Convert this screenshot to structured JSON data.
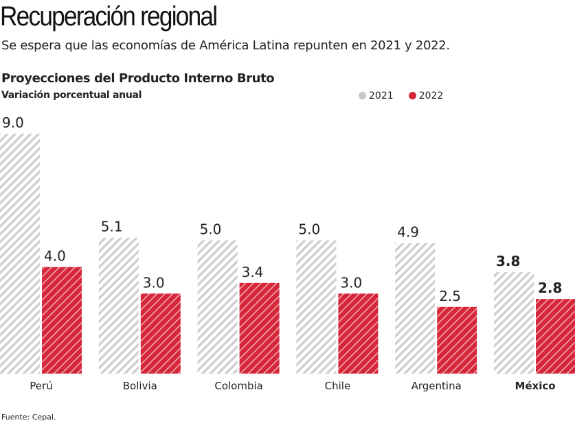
{
  "title": "Recuperación regional",
  "subtitle": "Se espera que las economías de América Latina repunten en 2021 y 2022.",
  "source": "Fuente: Cepal.",
  "colors": {
    "2021": "#c8c8c8",
    "2022": "#d6263a"
  },
  "chart_data": {
    "type": "bar",
    "title": "Proyecciones del Producto Interno Bruto",
    "subtitle": "Variación porcentual anual",
    "categories": [
      "Perú",
      "Bolivia",
      "Colombia",
      "Chile",
      "Argentina",
      "México"
    ],
    "highlight": "México",
    "series": [
      {
        "name": "2021",
        "values": [
          9.0,
          5.1,
          5.0,
          5.0,
          4.9,
          3.8
        ],
        "pattern": "gray hatched"
      },
      {
        "name": "2022",
        "values": [
          4.0,
          3.0,
          3.4,
          3.0,
          2.5,
          2.8
        ],
        "pattern": "red hatched"
      }
    ],
    "ylim": [
      0,
      9
    ],
    "legend": "top-right",
    "grid": false
  }
}
